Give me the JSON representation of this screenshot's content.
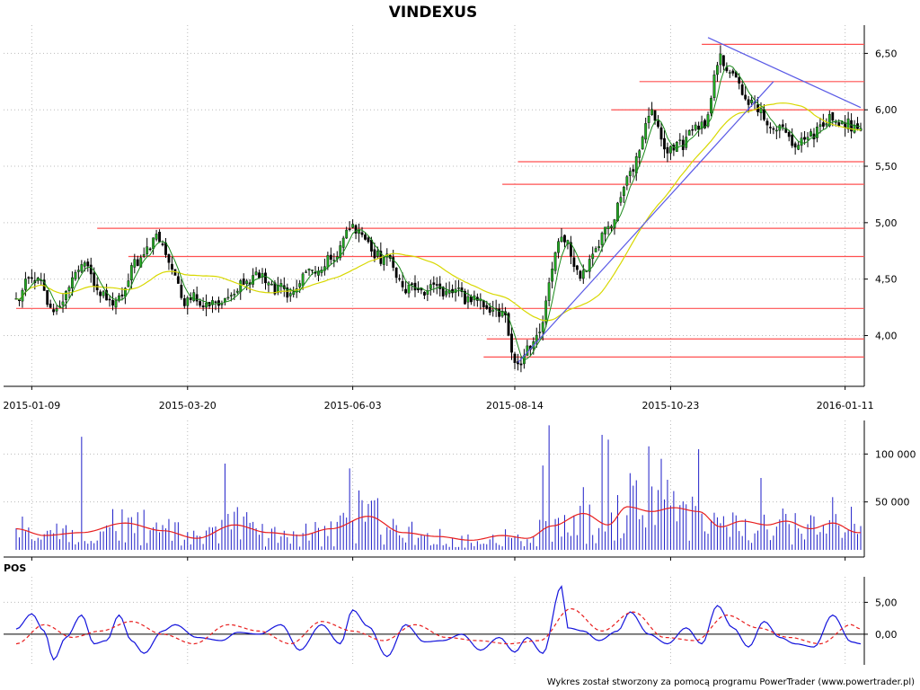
{
  "chart_data": [
    {
      "type": "candlestick",
      "title": "VINDEXUS",
      "x_tick_labels": [
        "2015-01-09",
        "2015-03-20",
        "2015-06-03",
        "2015-08-14",
        "2015-10-23",
        "2016-01-11"
      ],
      "y_ticks": [
        4.0,
        4.5,
        5.0,
        5.5,
        6.0,
        6.5
      ],
      "y_tick_labels": [
        "4,00",
        "4,50",
        "5,00",
        "5,50",
        "6,00",
        "6,50"
      ],
      "ylim": [
        3.55,
        6.75
      ],
      "grid": true,
      "price_anchors": {
        "dates": [
          "2015-01-02",
          "2015-01-09",
          "2015-01-20",
          "2015-02-02",
          "2015-02-16",
          "2015-03-02",
          "2015-03-06",
          "2015-03-20",
          "2015-04-03",
          "2015-04-20",
          "2015-05-05",
          "2015-05-20",
          "2015-06-03",
          "2015-06-15",
          "2015-06-30",
          "2015-07-15",
          "2015-07-31",
          "2015-08-10",
          "2015-08-17",
          "2015-08-25",
          "2015-09-04",
          "2015-09-15",
          "2015-09-25",
          "2015-10-05",
          "2015-10-15",
          "2015-10-23",
          "2015-11-06",
          "2015-11-16",
          "2015-11-27",
          "2015-12-08",
          "2015-12-18",
          "2016-01-05",
          "2016-01-15"
        ],
        "close": [
          4.28,
          4.55,
          4.2,
          4.6,
          4.3,
          4.72,
          4.85,
          4.32,
          4.28,
          4.52,
          4.38,
          4.6,
          4.95,
          4.72,
          4.42,
          4.38,
          4.3,
          4.18,
          3.72,
          4.0,
          4.85,
          4.55,
          4.95,
          5.4,
          5.95,
          5.65,
          5.85,
          6.45,
          6.1,
          5.85,
          5.72,
          5.9,
          5.82
        ]
      },
      "horizontal_levels": [
        {
          "price": 6.58,
          "from": "2015-11-06",
          "to": "2016-01-20"
        },
        {
          "price": 6.25,
          "from": "2015-10-09",
          "to": "2016-01-20"
        },
        {
          "price": 6.0,
          "from": "2015-09-28",
          "to": "2016-01-20"
        },
        {
          "price": 5.54,
          "from": "2015-08-17",
          "to": "2016-01-20"
        },
        {
          "price": 5.34,
          "from": "2015-08-10",
          "to": "2016-01-20"
        },
        {
          "price": 4.95,
          "from": "2015-02-09",
          "to": "2016-01-20"
        },
        {
          "price": 4.7,
          "from": "2015-02-23",
          "to": "2016-01-20"
        },
        {
          "price": 4.24,
          "from": "2015-01-02",
          "to": "2016-01-20"
        },
        {
          "price": 3.97,
          "from": "2015-08-03",
          "to": "2016-01-20"
        },
        {
          "price": 3.81,
          "from": "2015-07-31",
          "to": "2016-01-20"
        }
      ],
      "trend_lines": [
        {
          "from": {
            "date": "2015-08-17",
            "price": 3.76
          },
          "to": {
            "date": "2015-12-09",
            "price": 6.25
          }
        },
        {
          "from": {
            "date": "2015-11-10",
            "price": 6.64
          },
          "to": {
            "date": "2016-01-20",
            "price": 6.02
          }
        }
      ],
      "colors": {
        "candle_up": "#22aa22",
        "candle_down": "#000000",
        "short_ma": "#1a8a1a",
        "long_ma": "#d8d800",
        "levels": "#ff5050",
        "trend": "#5a5ae6",
        "grid": "#bbbbbb"
      }
    },
    {
      "type": "bar",
      "y_ticks": [
        50000,
        100000
      ],
      "y_tick_labels": [
        "50 000",
        "100 000"
      ],
      "ylim": [
        0,
        135000
      ],
      "grid": true,
      "volume_spikes": [
        {
          "date": "2015-02-02",
          "value": 118000
        },
        {
          "date": "2015-04-07",
          "value": 90000
        },
        {
          "date": "2015-06-02",
          "value": 85000
        },
        {
          "date": "2015-06-05",
          "value": 62000
        },
        {
          "date": "2015-08-27",
          "value": 88000
        },
        {
          "date": "2015-08-31",
          "value": 130000
        },
        {
          "date": "2015-09-23",
          "value": 120000
        },
        {
          "date": "2015-09-25",
          "value": 115000
        },
        {
          "date": "2015-10-06",
          "value": 80000
        },
        {
          "date": "2015-10-14",
          "value": 108000
        },
        {
          "date": "2015-10-20",
          "value": 95000
        },
        {
          "date": "2015-11-05",
          "value": 105000
        },
        {
          "date": "2015-12-03",
          "value": 75000
        },
        {
          "date": "2016-01-05",
          "value": 55000
        },
        {
          "date": "2016-01-13",
          "value": 45000
        }
      ],
      "volume_ma_anchors": {
        "dates": [
          "2015-01-02",
          "2015-01-15",
          "2015-02-02",
          "2015-02-20",
          "2015-03-10",
          "2015-03-25",
          "2015-04-10",
          "2015-04-25",
          "2015-05-10",
          "2015-05-25",
          "2015-06-10",
          "2015-06-25",
          "2015-07-10",
          "2015-07-25",
          "2015-08-10",
          "2015-08-20",
          "2015-09-01",
          "2015-09-15",
          "2015-09-25",
          "2015-10-05",
          "2015-10-15",
          "2015-10-25",
          "2015-11-05",
          "2015-11-15",
          "2015-11-25",
          "2015-12-05",
          "2015-12-15",
          "2015-12-25",
          "2016-01-05",
          "2016-01-15"
        ],
        "values": [
          22000,
          15000,
          18000,
          28000,
          20000,
          12000,
          26000,
          18000,
          15000,
          22000,
          35000,
          18000,
          14000,
          10000,
          15000,
          12000,
          25000,
          38000,
          26000,
          45000,
          40000,
          44000,
          40000,
          24000,
          30000,
          26000,
          30000,
          22000,
          28000,
          18000
        ]
      },
      "colors": {
        "bars": "#1e1ec8",
        "ma": "#e81e1e",
        "grid": "#bbbbbb"
      }
    },
    {
      "type": "line",
      "title": "POS",
      "y_ticks": [
        0,
        5
      ],
      "y_tick_labels": [
        "0,00",
        "5,00"
      ],
      "ylim": [
        -4.8,
        9
      ],
      "grid": true,
      "series": [
        {
          "color": "#1414dc",
          "style": "solid",
          "dates": [
            "2015-01-02",
            "2015-01-09",
            "2015-01-15",
            "2015-01-20",
            "2015-01-26",
            "2015-02-02",
            "2015-02-06",
            "2015-02-12",
            "2015-02-18",
            "2015-02-24",
            "2015-03-02",
            "2015-03-10",
            "2015-03-16",
            "2015-03-25",
            "2015-04-05",
            "2015-04-13",
            "2015-04-22",
            "2015-05-01",
            "2015-05-11",
            "2015-05-20",
            "2015-05-28",
            "2015-06-03",
            "2015-06-10",
            "2015-06-18",
            "2015-06-26",
            "2015-07-06",
            "2015-07-14",
            "2015-07-22",
            "2015-07-30",
            "2015-08-07",
            "2015-08-14",
            "2015-08-20",
            "2015-08-27",
            "2015-09-04",
            "2015-09-08",
            "2015-09-15",
            "2015-09-22",
            "2015-09-30",
            "2015-10-06",
            "2015-10-14",
            "2015-10-22",
            "2015-10-30",
            "2015-11-06",
            "2015-11-13",
            "2015-11-20",
            "2015-11-27",
            "2015-12-04",
            "2015-12-11",
            "2015-12-18",
            "2015-12-28",
            "2016-01-05",
            "2016-01-13",
            "2016-01-18"
          ],
          "values": [
            0.8,
            3.2,
            0.5,
            -4.0,
            -0.5,
            3.0,
            -1.5,
            -1.0,
            3.0,
            -1.0,
            -3.0,
            0.5,
            1.5,
            -0.5,
            -1.0,
            0.3,
            0.0,
            1.5,
            -2.5,
            1.5,
            -1.5,
            3.8,
            1.2,
            -3.5,
            1.5,
            -1.2,
            -1.0,
            0.0,
            -2.5,
            -0.5,
            -2.8,
            -0.5,
            -3.0,
            7.5,
            1.0,
            0.5,
            -1.0,
            0.5,
            3.5,
            0.0,
            -1.5,
            1.0,
            -1.5,
            4.5,
            1.0,
            -2.0,
            2.0,
            -0.5,
            -1.5,
            -2.0,
            3.0,
            -1.2,
            -1.5
          ]
        },
        {
          "color": "#e81e1e",
          "style": "dashed",
          "dates": [
            "2015-01-02",
            "2015-01-15",
            "2015-01-28",
            "2015-02-10",
            "2015-02-24",
            "2015-03-10",
            "2015-03-24",
            "2015-04-08",
            "2015-04-22",
            "2015-05-06",
            "2015-05-20",
            "2015-06-03",
            "2015-06-17",
            "2015-07-01",
            "2015-07-15",
            "2015-07-29",
            "2015-08-12",
            "2015-08-26",
            "2015-09-09",
            "2015-09-23",
            "2015-10-07",
            "2015-10-21",
            "2015-11-04",
            "2015-11-18",
            "2015-12-02",
            "2015-12-16",
            "2015-12-30",
            "2016-01-13",
            "2016-01-18"
          ],
          "values": [
            -1.5,
            1.5,
            -0.5,
            0.5,
            2.0,
            0.0,
            -1.5,
            1.5,
            0.5,
            -1.5,
            2.0,
            0.5,
            -1.0,
            1.5,
            -0.5,
            -1.0,
            -1.5,
            -1.0,
            4.0,
            0.5,
            3.5,
            -0.5,
            -1.0,
            3.0,
            1.0,
            -0.5,
            -1.5,
            1.5,
            0.8
          ]
        }
      ]
    }
  ],
  "footer_credit": "Wykres został stworzony za pomocą programu PowerTrader (www.powertrader.pl)"
}
